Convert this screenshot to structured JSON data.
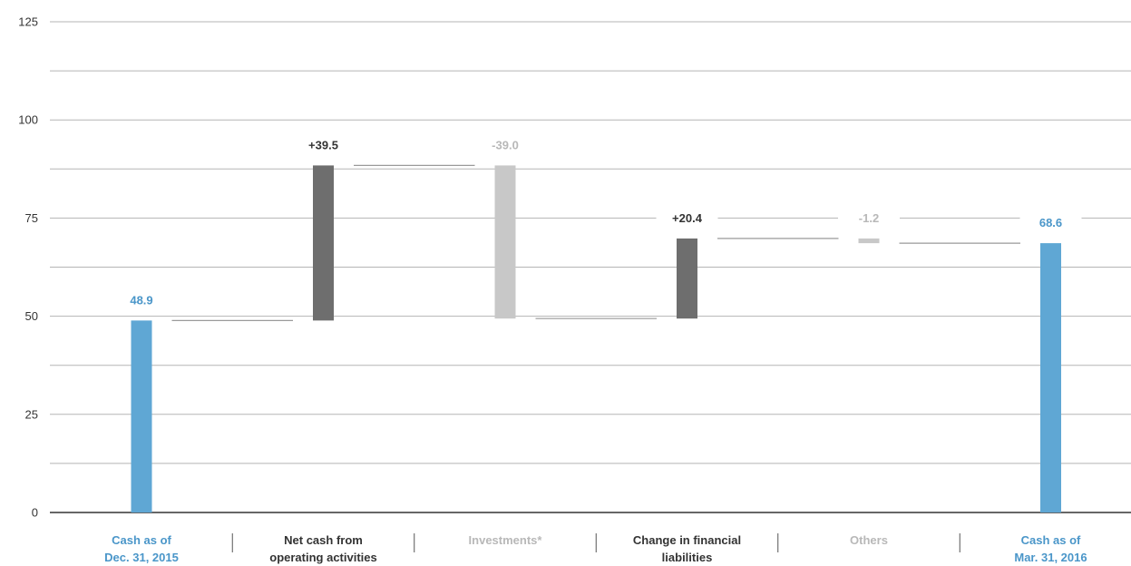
{
  "chart_data": {
    "type": "bar",
    "subtype": "waterfall",
    "title": "",
    "xlabel": "",
    "ylabel": "",
    "ylim": [
      0,
      125
    ],
    "yticks": [
      0,
      25,
      50,
      75,
      100,
      125
    ],
    "grid": true,
    "categories": [
      [
        "Cash as of",
        "Dec. 31, 2015"
      ],
      [
        "Net cash from",
        "operating activities"
      ],
      [
        "Investments*"
      ],
      [
        "Change in financial",
        "liabilities"
      ],
      [
        "Others"
      ],
      [
        "Cash as of",
        "Mar. 31, 2016"
      ]
    ],
    "bars": [
      {
        "kind": "total",
        "start": 0,
        "end": 48.9,
        "label": "48.9"
      },
      {
        "kind": "increase",
        "start": 48.9,
        "end": 88.4,
        "label": "+39.5"
      },
      {
        "kind": "decrease",
        "start": 88.4,
        "end": 49.4,
        "label": "-39.0"
      },
      {
        "kind": "increase",
        "start": 49.4,
        "end": 69.8,
        "label": "+20.4"
      },
      {
        "kind": "decrease",
        "start": 69.8,
        "end": 68.6,
        "label": "-1.2"
      },
      {
        "kind": "total",
        "start": 0,
        "end": 68.6,
        "label": "68.6"
      }
    ],
    "colors": {
      "total": "#5fa7d4",
      "increase": "#6e6e6e",
      "decrease": "#c8c8c8",
      "total_text": "#4a96c9",
      "increase_text": "#333333",
      "decrease_text": "#b8b8b8",
      "grid": "#b5b5b5",
      "axis": "#333333"
    }
  }
}
